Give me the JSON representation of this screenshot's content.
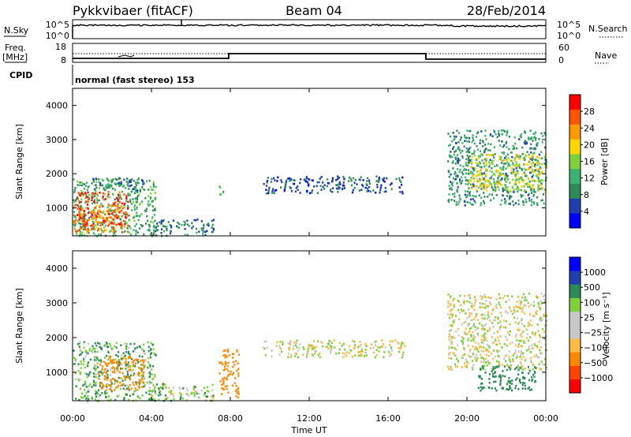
{
  "header": {
    "station": "Pykkvibaer (fitACF)",
    "beam": "Beam 04",
    "date": "28/Feb/2014"
  },
  "panel_nsky": {
    "left_label": "N.Sky",
    "left_ticks": [
      "10^5",
      "10^0"
    ],
    "right_label": "N.Search",
    "right_ticks": [
      "10^5",
      "10^0"
    ]
  },
  "panel_freq": {
    "left_label_1": "Freq.",
    "left_label_2": "[MHz]",
    "left_ticks": [
      "18",
      "8"
    ],
    "right_label": "Nave",
    "right_ticks": [
      "60",
      "0"
    ]
  },
  "panel_cpid": {
    "label": "CPID",
    "text": "normal (fast stereo) 153"
  },
  "colors": {
    "power_scale": [
      "#0000ff",
      "#2040b0",
      "#2e8b57",
      "#3cb371",
      "#7fd13b",
      "#ffd700",
      "#ff9900",
      "#ff5500",
      "#ff0000"
    ],
    "velocity_scale": [
      "#ff0000",
      "#ff4400",
      "#ff8800",
      "#ffbb44",
      "#c8c8c8",
      "#c8c8c8",
      "#7fd13b",
      "#2e8b57",
      "#2040b0",
      "#0000ff"
    ]
  },
  "chart_data": [
    {
      "type": "heatmap",
      "title": "Power",
      "ylabel": "Slant Range [km]",
      "ylim": [
        180,
        4500
      ],
      "y_ticks": [
        "1000",
        "2000",
        "3000",
        "4000"
      ],
      "x_ticks": [
        "00:00",
        "04:00",
        "08:00",
        "12:00",
        "16:00",
        "20:00",
        "00:00"
      ],
      "colorbar_label": "Power [dB]",
      "colorbar_ticks": [
        "4",
        "8",
        "12",
        "16",
        "20",
        "24",
        "28"
      ],
      "regions": [
        {
          "t0": 0.0,
          "t1": 4.2,
          "r0": 200,
          "r1": 1900,
          "value": 12
        },
        {
          "t0": 0.0,
          "t1": 2.6,
          "r0": 300,
          "r1": 1100,
          "value": 24
        },
        {
          "t0": 0.2,
          "t1": 2.8,
          "r0": 500,
          "r1": 1500,
          "value": 28
        },
        {
          "t0": 1.0,
          "t1": 3.6,
          "r0": 1500,
          "r1": 1900,
          "value": 8
        },
        {
          "t0": 4.0,
          "t1": 7.2,
          "r0": 200,
          "r1": 700,
          "value": 8
        },
        {
          "t0": 7.4,
          "t1": 7.7,
          "r0": 1400,
          "r1": 1700,
          "value": 14
        },
        {
          "t0": 9.6,
          "t1": 16.8,
          "r0": 1450,
          "r1": 1950,
          "value": 6
        },
        {
          "t0": 19.0,
          "t1": 24.0,
          "r0": 1100,
          "r1": 3300,
          "value": 10
        },
        {
          "t0": 20.0,
          "t1": 24.0,
          "r0": 1500,
          "r1": 2600,
          "value": 18
        }
      ]
    },
    {
      "type": "heatmap",
      "title": "Velocity",
      "ylabel": "Slant Range [km]",
      "ylim": [
        180,
        4500
      ],
      "y_ticks": [
        "1000",
        "2000",
        "3000",
        "4000"
      ],
      "x_ticks": [
        "00:00",
        "04:00",
        "08:00",
        "12:00",
        "16:00",
        "20:00",
        "00:00"
      ],
      "xlabel": "Time UT",
      "colorbar_label": "Velocity [m s⁻¹]",
      "colorbar_ticks": [
        "1000",
        "500",
        "100",
        "25",
        "−25",
        "−100",
        "−500",
        "−1000"
      ],
      "regions": [
        {
          "t0": 0.0,
          "t1": 4.2,
          "r0": 200,
          "r1": 1900,
          "value": 100
        },
        {
          "t0": 1.2,
          "t1": 3.6,
          "r0": 500,
          "r1": 1500,
          "value": -300
        },
        {
          "t0": 4.0,
          "t1": 7.2,
          "r0": 200,
          "r1": 700,
          "value": 50
        },
        {
          "t0": 7.4,
          "t1": 8.4,
          "r0": 300,
          "r1": 1700,
          "value": -200
        },
        {
          "t0": 9.6,
          "t1": 16.8,
          "r0": 1450,
          "r1": 1950,
          "value": 0
        },
        {
          "t0": 19.0,
          "t1": 24.0,
          "r0": 1100,
          "r1": 3300,
          "value": 0
        },
        {
          "t0": 20.5,
          "t1": 23.5,
          "r0": 500,
          "r1": 1200,
          "value": 200
        }
      ]
    }
  ]
}
